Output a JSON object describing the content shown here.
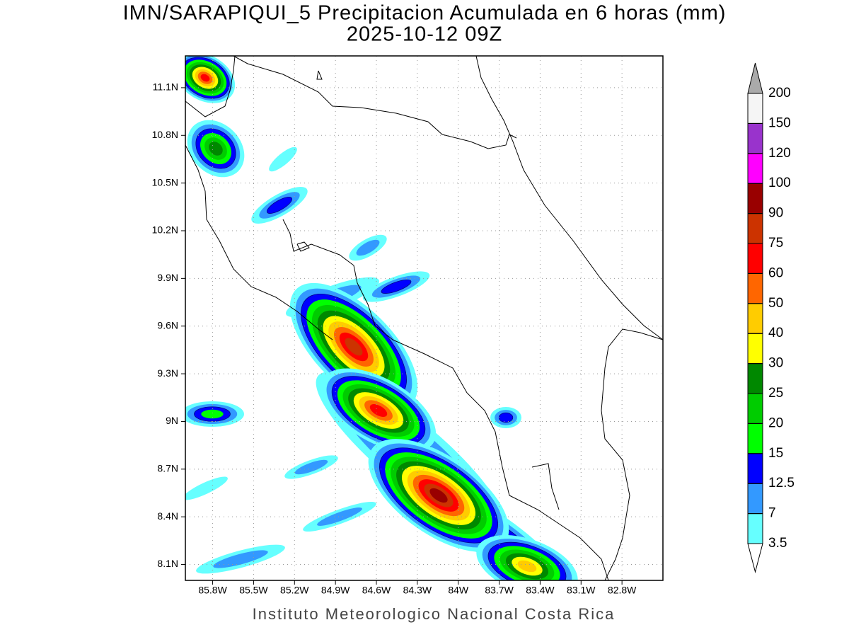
{
  "header": {
    "title": "IMN/SARAPIQUI_5 Precipitacion Acumulada en 6 horas (mm)",
    "subtitle": "2025-10-12 09Z"
  },
  "map": {
    "lon_range": [
      -86.0,
      -82.5
    ],
    "lat_range": [
      8.0,
      11.3
    ],
    "lon_ticks": [
      {
        "value": -85.8,
        "label": "85.8W"
      },
      {
        "value": -85.5,
        "label": "85.5W"
      },
      {
        "value": -85.2,
        "label": "85.2W"
      },
      {
        "value": -84.9,
        "label": "84.9W"
      },
      {
        "value": -84.6,
        "label": "84.6W"
      },
      {
        "value": -84.3,
        "label": "84.3W"
      },
      {
        "value": -84.0,
        "label": "84W"
      },
      {
        "value": -83.7,
        "label": "83.7W"
      },
      {
        "value": -83.4,
        "label": "83.4W"
      },
      {
        "value": -83.1,
        "label": "83.1W"
      },
      {
        "value": -82.8,
        "label": "82.8W"
      }
    ],
    "lat_ticks": [
      {
        "value": 8.1,
        "label": "8.1N"
      },
      {
        "value": 8.4,
        "label": "8.4N"
      },
      {
        "value": 8.7,
        "label": "8.7N"
      },
      {
        "value": 9.0,
        "label": "9N"
      },
      {
        "value": 9.3,
        "label": "9.3N"
      },
      {
        "value": 9.6,
        "label": "9.6N"
      },
      {
        "value": 9.9,
        "label": "9.9N"
      },
      {
        "value": 10.2,
        "label": "10.2N"
      },
      {
        "value": 10.5,
        "label": "10.5N"
      },
      {
        "value": 10.8,
        "label": "10.8N"
      },
      {
        "value": 11.1,
        "label": "11.1N"
      }
    ]
  },
  "colorbar": {
    "levels": [
      3.5,
      7,
      12.5,
      15,
      20,
      25,
      30,
      40,
      50,
      60,
      75,
      90,
      100,
      120,
      150,
      200
    ],
    "colors": [
      "#66ffff",
      "#3399ff",
      "#0000ff",
      "#00ff00",
      "#00cc00",
      "#008800",
      "#ffff00",
      "#ffcc00",
      "#ff6600",
      "#ff0000",
      "#cc3300",
      "#990000",
      "#ff00ff",
      "#9933cc",
      "#f5f5f5"
    ],
    "under_color": "#ffffff",
    "over_color": "#aaaaaa"
  },
  "footer": "Instituto Meteorologico Nacional Costa Rica"
}
